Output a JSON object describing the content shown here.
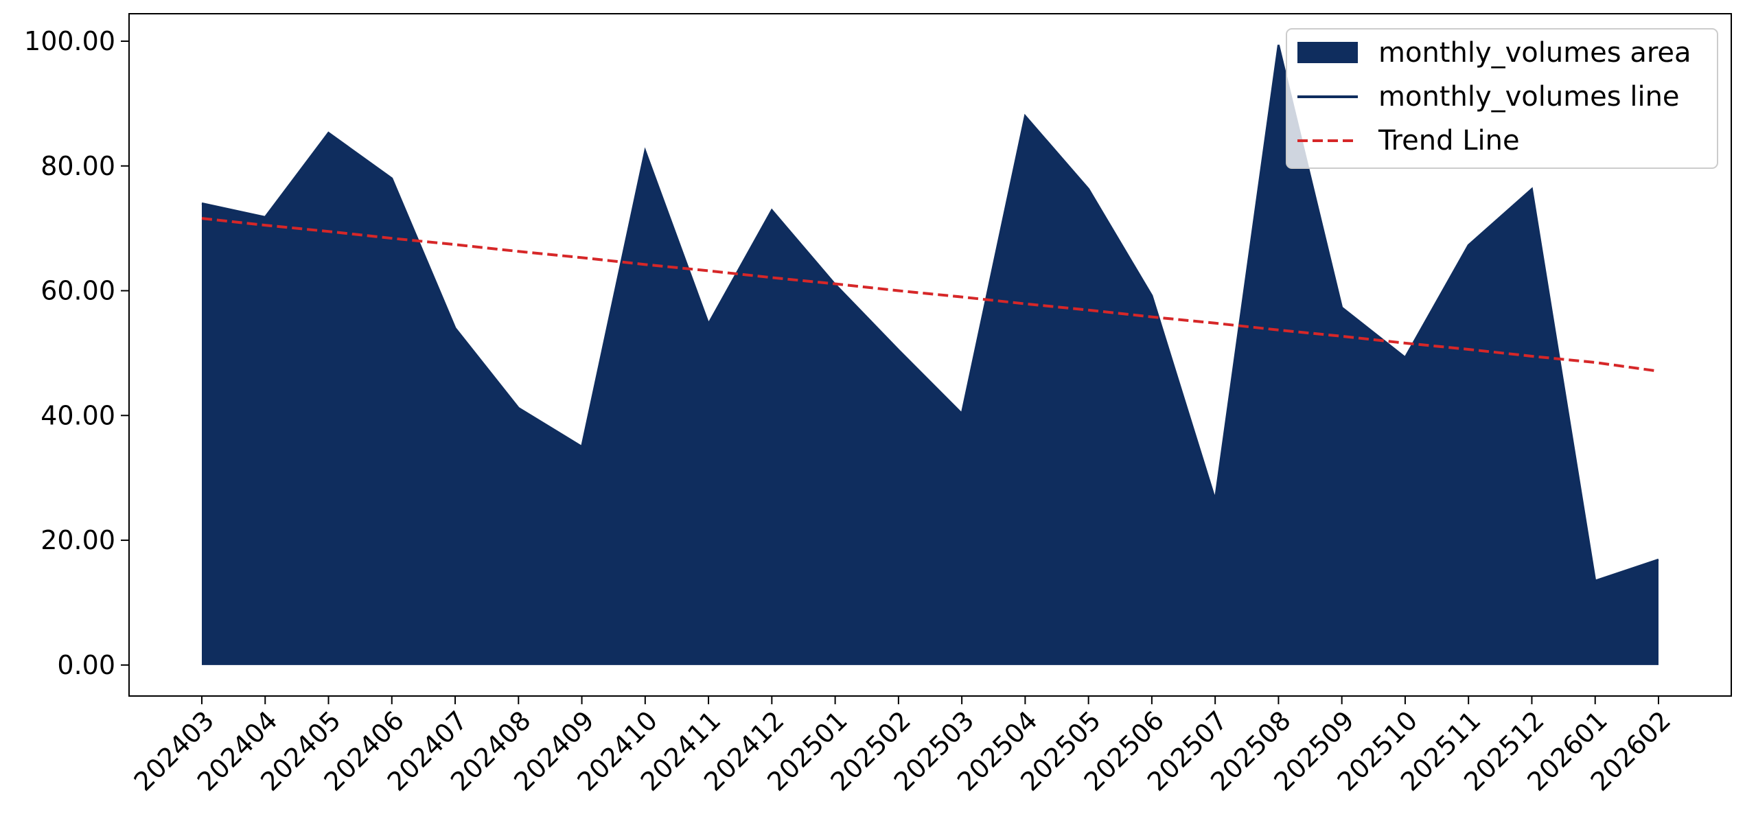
{
  "chart_data": {
    "type": "area",
    "title": "",
    "xlabel": "",
    "ylabel": "",
    "categories": [
      "202403",
      "202404",
      "202405",
      "202406",
      "202407",
      "202408",
      "202409",
      "202410",
      "202411",
      "202412",
      "202501",
      "202502",
      "202503",
      "202504",
      "202505",
      "202506",
      "202507",
      "202508",
      "202509",
      "202510",
      "202511",
      "202512",
      "202601",
      "202602"
    ],
    "series": [
      {
        "name": "monthly_volumes area",
        "kind": "area",
        "color": "#0f2d5e",
        "values": [
          74.0,
          71.8,
          85.3,
          78.0,
          54.0,
          41.2,
          35.0,
          82.4,
          54.7,
          72.9,
          61.0,
          50.5,
          40.3,
          88.0,
          76.3,
          59.2,
          26.5,
          99.4,
          57.3,
          49.3,
          67.3,
          76.3,
          13.5,
          16.9
        ]
      },
      {
        "name": "monthly_volumes line",
        "kind": "line",
        "color": "#0f2d5e",
        "values": [
          74.0,
          71.8,
          85.3,
          78.0,
          54.0,
          41.2,
          35.0,
          82.4,
          54.7,
          72.9,
          61.0,
          50.5,
          40.3,
          88.0,
          76.3,
          59.2,
          26.5,
          99.4,
          57.3,
          49.3,
          67.3,
          76.3,
          13.5,
          16.9
        ]
      },
      {
        "name": "Trend Line",
        "kind": "line",
        "style": "dashed",
        "color": "#d62728",
        "values": [
          71.6,
          70.5,
          69.5,
          68.4,
          67.4,
          66.3,
          65.3,
          64.2,
          63.2,
          62.1,
          61.1,
          60.0,
          59.0,
          57.9,
          56.9,
          55.8,
          54.8,
          53.7,
          52.7,
          51.6,
          50.6,
          49.5,
          48.5,
          47.1
        ]
      }
    ],
    "yticks": [
      "0.00",
      "20.00",
      "40.00",
      "60.00",
      "80.00",
      "100.00"
    ],
    "ylim": [
      -4.97,
      104.4
    ],
    "legend_position": "top-right",
    "grid": false
  }
}
